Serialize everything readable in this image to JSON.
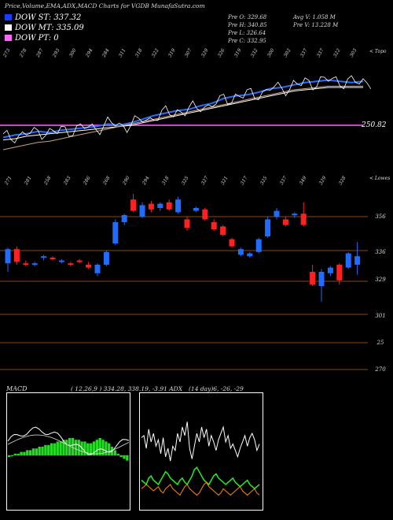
{
  "header": {
    "title": "Price,Volume,EMA,ADX,MACD Charts for VGDB MunafaSutra.com",
    "stats_left": [
      "Pre   O: 329.68",
      "Pre   H: 340.85",
      "Pre   L: 326.64",
      "Pre   C: 332.95"
    ],
    "stats_right": [
      "Avg V: 1.058 M",
      "Pre   V: 13.228  M"
    ]
  },
  "legend": [
    {
      "label": "DOW ST: 337.32",
      "color": "#1a3cff"
    },
    {
      "label": "DOW MT: 335.09",
      "color": "#ffffff"
    },
    {
      "label": "DOW PT: 0",
      "color": "#ff66ff"
    }
  ],
  "ema_panel": {
    "top_labels": [
      "273",
      "278",
      "287",
      "293",
      "300",
      "294",
      "284",
      "311",
      "318",
      "322",
      "319",
      "307",
      "329",
      "326",
      "319",
      "332",
      "300",
      "302",
      "337",
      "337",
      "322",
      "303"
    ],
    "price_tag": "250.82",
    "corner_label": "< Topo"
  },
  "candle_panel": {
    "top_labels": [
      "271",
      "281",
      "258",
      "283",
      "286",
      "268",
      "290",
      "294",
      "318",
      "325",
      "327",
      "321",
      "317",
      "325",
      "337",
      "349",
      "329",
      "328"
    ],
    "right_axis": [
      "356",
      "336",
      "329",
      "301",
      "25",
      "270"
    ],
    "corner_label": "< Lowes"
  },
  "macd_panel": {
    "title": "MACD",
    "params": "( 12,26,9 ) 334.28, 338.19, -3.91 ADX",
    "adx_params": "(14  day)6, -26, -29"
  },
  "colors": {
    "up": "#1f6cff",
    "down": "#ff2020",
    "level": "#8b4513",
    "pink": "#d040d0"
  },
  "chart_data": [
    {
      "type": "line",
      "title": "EMA price panel",
      "series": [
        {
          "values": [
            290,
            292,
            293,
            295,
            294,
            296,
            297,
            298,
            299,
            301,
            300,
            302,
            305,
            308,
            310,
            312,
            313,
            316,
            318,
            322,
            324,
            325,
            327,
            330,
            331,
            333,
            335,
            336,
            337,
            336,
            335,
            336
          ]
        },
        {
          "values": [
            288,
            289,
            291,
            292,
            293,
            294,
            295,
            296,
            297,
            298,
            299,
            300,
            302,
            304,
            306,
            308,
            310,
            312,
            314,
            316,
            318,
            320,
            322,
            324,
            326,
            328,
            329,
            330,
            331,
            331,
            331,
            331
          ]
        },
        {
          "values": [
            280,
            282,
            284,
            286,
            287,
            289,
            291,
            293,
            295,
            297,
            299,
            301,
            303,
            305,
            307,
            309,
            311,
            313,
            315,
            317,
            319,
            321,
            323,
            325,
            327,
            329,
            330,
            331,
            332,
            332,
            332,
            332
          ]
        }
      ],
      "level": 250.82
    },
    {
      "type": "bar",
      "title": "Candles",
      "candles": [
        {
          "o": 331,
          "c": 341,
          "h": 342,
          "l": 325,
          "up": true
        },
        {
          "o": 341,
          "c": 332,
          "h": 343,
          "l": 330,
          "up": false
        },
        {
          "o": 331,
          "c": 330,
          "h": 333,
          "l": 329,
          "up": false
        },
        {
          "o": 330,
          "c": 331,
          "h": 332,
          "l": 329,
          "up": true
        },
        {
          "o": 335,
          "c": 336,
          "h": 337,
          "l": 333,
          "up": true
        },
        {
          "o": 335,
          "c": 334,
          "h": 336,
          "l": 333,
          "up": false
        },
        {
          "o": 332,
          "c": 333,
          "h": 334,
          "l": 331,
          "up": true
        },
        {
          "o": 331,
          "c": 330,
          "h": 332,
          "l": 329,
          "up": false
        },
        {
          "o": 333,
          "c": 332,
          "h": 334,
          "l": 331,
          "up": false
        },
        {
          "o": 330,
          "c": 328,
          "h": 332,
          "l": 327,
          "up": false
        },
        {
          "o": 324,
          "c": 330,
          "h": 331,
          "l": 322,
          "up": true
        },
        {
          "o": 330,
          "c": 339,
          "h": 340,
          "l": 329,
          "up": true
        },
        {
          "o": 345,
          "c": 360,
          "h": 362,
          "l": 344,
          "up": true
        },
        {
          "o": 360,
          "c": 365,
          "h": 366,
          "l": 358,
          "up": true
        },
        {
          "o": 376,
          "c": 368,
          "h": 380,
          "l": 367,
          "up": false
        },
        {
          "o": 364,
          "c": 372,
          "h": 374,
          "l": 363,
          "up": true
        },
        {
          "o": 373,
          "c": 369,
          "h": 375,
          "l": 367,
          "up": false
        },
        {
          "o": 370,
          "c": 373,
          "h": 374,
          "l": 368,
          "up": true
        },
        {
          "o": 374,
          "c": 369,
          "h": 376,
          "l": 368,
          "up": false
        },
        {
          "o": 367,
          "c": 376,
          "h": 378,
          "l": 366,
          "up": true
        },
        {
          "o": 362,
          "c": 356,
          "h": 364,
          "l": 354,
          "up": false
        },
        {
          "o": 368,
          "c": 370,
          "h": 371,
          "l": 367,
          "up": true
        },
        {
          "o": 369,
          "c": 362,
          "h": 370,
          "l": 361,
          "up": false
        },
        {
          "o": 360,
          "c": 355,
          "h": 362,
          "l": 354,
          "up": false
        },
        {
          "o": 357,
          "c": 351,
          "h": 358,
          "l": 350,
          "up": false
        },
        {
          "o": 348,
          "c": 343,
          "h": 349,
          "l": 342,
          "up": false
        },
        {
          "o": 337,
          "c": 341,
          "h": 342,
          "l": 336,
          "up": true
        },
        {
          "o": 336,
          "c": 338,
          "h": 339,
          "l": 335,
          "up": true
        },
        {
          "o": 339,
          "c": 348,
          "h": 349,
          "l": 338,
          "up": true
        },
        {
          "o": 350,
          "c": 362,
          "h": 364,
          "l": 349,
          "up": true
        },
        {
          "o": 364,
          "c": 368,
          "h": 370,
          "l": 362,
          "up": true
        },
        {
          "o": 362,
          "c": 358,
          "h": 364,
          "l": 357,
          "up": false
        },
        {
          "o": 365,
          "c": 366,
          "h": 367,
          "l": 363,
          "up": true
        },
        {
          "o": 366,
          "c": 358,
          "h": 374,
          "l": 357,
          "up": false
        },
        {
          "o": 325,
          "c": 316,
          "h": 330,
          "l": 315,
          "up": false
        },
        {
          "o": 315,
          "c": 325,
          "h": 327,
          "l": 304,
          "up": true
        },
        {
          "o": 324,
          "c": 328,
          "h": 329,
          "l": 322,
          "up": true
        },
        {
          "o": 330,
          "c": 319,
          "h": 331,
          "l": 316,
          "up": false
        },
        {
          "o": 328,
          "c": 338,
          "h": 339,
          "l": 327,
          "up": true
        },
        {
          "o": 330,
          "c": 336,
          "h": 346,
          "l": 323,
          "up": true
        }
      ],
      "levels": [
        368,
        339,
        329,
        301,
        287,
        270
      ]
    },
    {
      "type": "bar",
      "title": "MACD",
      "values": [
        -1,
        0,
        1,
        1,
        2,
        2,
        3,
        3,
        4,
        4,
        5,
        5,
        6,
        6,
        7,
        7,
        8,
        8,
        9,
        9,
        10,
        10,
        9,
        9,
        8,
        8,
        7,
        7,
        8,
        9,
        10,
        9,
        8,
        7,
        5,
        3,
        1,
        -1,
        -2,
        -3
      ]
    },
    {
      "type": "line",
      "title": "ADX",
      "series": [
        {
          "values": [
            70,
            72,
            60,
            78,
            66,
            74,
            62,
            68,
            55,
            70,
            52,
            60,
            48,
            62,
            58,
            74,
            66,
            80,
            72,
            85,
            60,
            50,
            62,
            74,
            66,
            80,
            70,
            78,
            62,
            72,
            66,
            58,
            68,
            74,
            80,
            66,
            72,
            60,
            64,
            58,
            52,
            60,
            66,
            72,
            62,
            70,
            74,
            68,
            58,
            64
          ]
        },
        {
          "values": [
            30,
            28,
            26,
            32,
            34,
            30,
            28,
            26,
            30,
            34,
            38,
            36,
            32,
            30,
            28,
            26,
            30,
            32,
            28,
            26,
            30,
            34,
            40,
            42,
            38,
            34,
            30,
            28,
            26,
            30,
            34,
            36,
            32,
            30,
            28,
            26,
            28,
            30,
            32,
            28,
            26,
            24,
            26,
            28,
            30,
            26,
            24,
            22,
            24,
            26
          ]
        },
        {
          "values": [
            22,
            24,
            26,
            24,
            22,
            20,
            22,
            24,
            20,
            18,
            22,
            24,
            26,
            22,
            20,
            18,
            16,
            20,
            24,
            26,
            22,
            20,
            18,
            16,
            18,
            22,
            26,
            28,
            24,
            22,
            20,
            18,
            16,
            18,
            22,
            20,
            18,
            16,
            18,
            20,
            22,
            24,
            20,
            18,
            16,
            18,
            20,
            22,
            18,
            16
          ]
        }
      ]
    }
  ]
}
